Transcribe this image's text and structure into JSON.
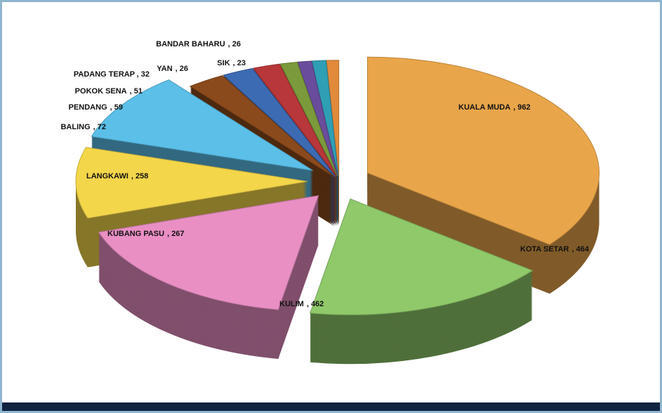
{
  "chart_data": {
    "type": "pie",
    "categories": [
      "KUALA MUDA",
      "KOTA SETAR",
      "KULIM",
      "KUBANG PASU",
      "LANGKAWI",
      "BALING",
      "PENDANG",
      "POKOK SENA",
      "PADANG TERAP",
      "YAN",
      "BANDAR BAHARU",
      "SIK"
    ],
    "values": [
      962,
      464,
      462,
      267,
      258,
      72,
      59,
      51,
      32,
      26,
      26,
      23
    ],
    "value_labels": [
      ", 962",
      ", 464",
      ", 462",
      ", 267",
      ", 258",
      ", 72",
      ", 59",
      ", 51",
      ", 32",
      ", 26",
      ", 26",
      ", 23"
    ],
    "colors": [
      "#e9a54a",
      "#8fc96a",
      "#e98fc4",
      "#f4d64a",
      "#5bbfe8",
      "#8b4a1c",
      "#3d6bb3",
      "#b8373a",
      "#7b9a3c",
      "#6a4c9c",
      "#2f9fb5",
      "#e08a3a"
    ]
  }
}
